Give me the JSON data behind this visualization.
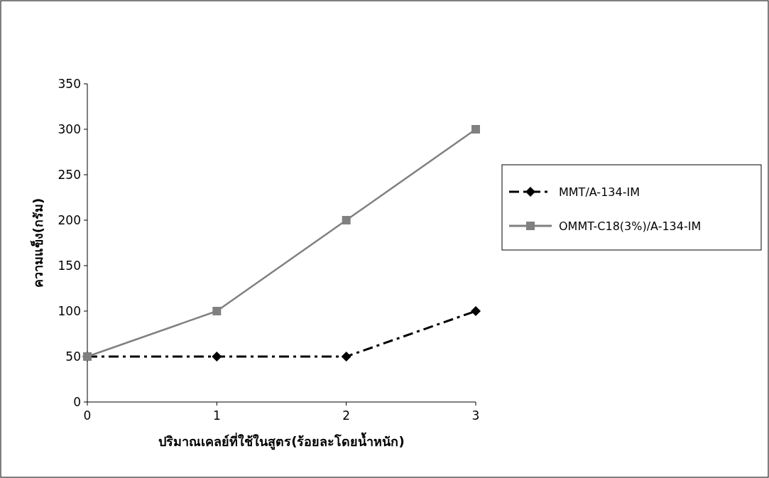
{
  "chart_data": {
    "type": "line",
    "xlabel": "ปริมาณเคลย์ที่ใช้ในสูตร(ร้อยละโดยน้ำหนัก)",
    "ylabel": "ความแข็ง(กรัม)",
    "categories": [
      "0",
      "1",
      "2",
      "3"
    ],
    "series": [
      {
        "name": "MMT/A-134-IM",
        "color": "#000000",
        "values": [
          50,
          50,
          50,
          100
        ],
        "marker": "diamond",
        "line_style": "dashed"
      },
      {
        "name": "OMMT-C18(3%)/A-134-IM",
        "color": "#808080",
        "values": [
          50,
          100,
          200,
          300
        ],
        "marker": "square",
        "line_style": "solid"
      }
    ],
    "ylim": [
      0,
      350
    ],
    "yticks": [
      0,
      50,
      100,
      150,
      200,
      250,
      300,
      350
    ],
    "grid": false,
    "legend": "right"
  }
}
